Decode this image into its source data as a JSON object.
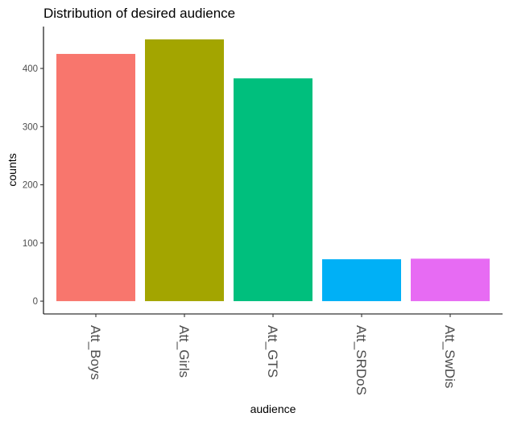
{
  "chart_data": {
    "type": "bar",
    "title": "Distribution of desired audience",
    "xlabel": "audience",
    "ylabel": "counts",
    "categories": [
      "Att_Boys",
      "Att_Girls",
      "Att_GTS",
      "Att_SRDoS",
      "Att_SwDis"
    ],
    "values": [
      425,
      450,
      383,
      72,
      73
    ],
    "colors": [
      "#F8766D",
      "#A3A500",
      "#00BF7D",
      "#00B0F6",
      "#E76BF3"
    ],
    "yticks": [
      0,
      100,
      200,
      300,
      400
    ],
    "ylim": [
      -22,
      472
    ],
    "grid": false,
    "legend": "none"
  }
}
